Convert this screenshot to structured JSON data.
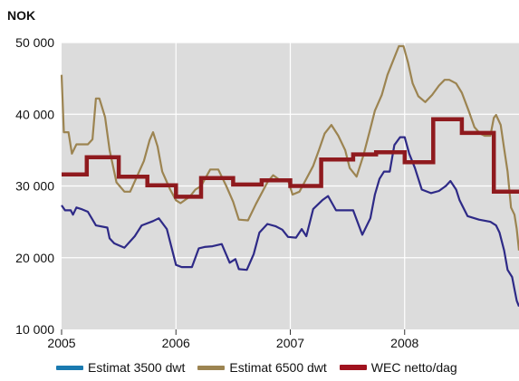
{
  "chart_data": {
    "type": "line",
    "title": "",
    "ylabel": "NOK",
    "xlabel": "",
    "xlim": [
      2005,
      2009
    ],
    "ylim": [
      10000,
      50000
    ],
    "x_tick_values": [
      2005,
      2006,
      2007,
      2008
    ],
    "x_tick_labels": [
      "2005",
      "2006",
      "2007",
      "2008"
    ],
    "y_tick_values": [
      10000,
      20000,
      30000,
      40000,
      50000
    ],
    "y_tick_labels": [
      "10 000",
      "20 000",
      "30 000",
      "40 000",
      "50 000"
    ],
    "grid": true,
    "legend_position": "bottom",
    "background": "#dcdcdc",
    "series": [
      {
        "name": "Estimat 3500 dwt",
        "color": "#2e2a87",
        "legend_color": "#1a7ab0",
        "style": "line",
        "points": [
          [
            2005.0,
            27300
          ],
          [
            2005.03,
            26600
          ],
          [
            2005.08,
            26600
          ],
          [
            2005.1,
            26000
          ],
          [
            2005.13,
            27000
          ],
          [
            2005.17,
            26800
          ],
          [
            2005.23,
            26400
          ],
          [
            2005.3,
            24500
          ],
          [
            2005.4,
            24200
          ],
          [
            2005.42,
            22700
          ],
          [
            2005.46,
            22000
          ],
          [
            2005.55,
            21400
          ],
          [
            2005.64,
            23000
          ],
          [
            2005.7,
            24500
          ],
          [
            2005.8,
            25100
          ],
          [
            2005.85,
            25500
          ],
          [
            2005.92,
            24000
          ],
          [
            2006.0,
            19000
          ],
          [
            2006.05,
            18700
          ],
          [
            2006.14,
            18700
          ],
          [
            2006.2,
            21300
          ],
          [
            2006.25,
            21500
          ],
          [
            2006.32,
            21600
          ],
          [
            2006.4,
            21900
          ],
          [
            2006.47,
            19300
          ],
          [
            2006.52,
            19800
          ],
          [
            2006.55,
            18400
          ],
          [
            2006.62,
            18300
          ],
          [
            2006.68,
            20500
          ],
          [
            2006.73,
            23500
          ],
          [
            2006.8,
            24700
          ],
          [
            2006.87,
            24400
          ],
          [
            2006.93,
            23900
          ],
          [
            2006.98,
            22900
          ],
          [
            2007.05,
            22800
          ],
          [
            2007.1,
            24000
          ],
          [
            2007.14,
            23000
          ],
          [
            2007.2,
            26800
          ],
          [
            2007.28,
            28000
          ],
          [
            2007.33,
            28600
          ],
          [
            2007.4,
            26600
          ],
          [
            2007.55,
            26600
          ],
          [
            2007.63,
            23200
          ],
          [
            2007.7,
            25500
          ],
          [
            2007.74,
            28800
          ],
          [
            2007.78,
            31000
          ],
          [
            2007.82,
            32000
          ],
          [
            2007.87,
            32000
          ],
          [
            2007.91,
            35700
          ],
          [
            2007.96,
            36800
          ],
          [
            2008.0,
            36800
          ],
          [
            2008.04,
            34500
          ],
          [
            2008.09,
            32500
          ],
          [
            2008.15,
            29500
          ],
          [
            2008.23,
            29000
          ],
          [
            2008.3,
            29300
          ],
          [
            2008.36,
            30000
          ],
          [
            2008.4,
            30700
          ],
          [
            2008.45,
            29500
          ],
          [
            2008.48,
            28000
          ],
          [
            2008.55,
            25800
          ],
          [
            2008.65,
            25300
          ],
          [
            2008.75,
            25000
          ],
          [
            2008.8,
            24500
          ],
          [
            2008.83,
            23500
          ],
          [
            2008.87,
            21000
          ],
          [
            2008.9,
            18300
          ],
          [
            2008.94,
            17300
          ],
          [
            2008.96,
            15600
          ],
          [
            2008.98,
            14000
          ],
          [
            2009.0,
            13200
          ]
        ]
      },
      {
        "name": "Estimat 6500 dwt",
        "color": "#9c8451",
        "legend_color": "#9c8451",
        "style": "line",
        "points": [
          [
            2005.0,
            45500
          ],
          [
            2005.02,
            37500
          ],
          [
            2005.06,
            37500
          ],
          [
            2005.09,
            34500
          ],
          [
            2005.13,
            35800
          ],
          [
            2005.23,
            35800
          ],
          [
            2005.27,
            36500
          ],
          [
            2005.3,
            42200
          ],
          [
            2005.33,
            42200
          ],
          [
            2005.38,
            39600
          ],
          [
            2005.42,
            35000
          ],
          [
            2005.48,
            30500
          ],
          [
            2005.55,
            29200
          ],
          [
            2005.6,
            29200
          ],
          [
            2005.65,
            31000
          ],
          [
            2005.72,
            33500
          ],
          [
            2005.77,
            36400
          ],
          [
            2005.8,
            37500
          ],
          [
            2005.84,
            35500
          ],
          [
            2005.88,
            32000
          ],
          [
            2005.95,
            29500
          ],
          [
            2006.0,
            28000
          ],
          [
            2006.04,
            27600
          ],
          [
            2006.12,
            28500
          ],
          [
            2006.17,
            29500
          ],
          [
            2006.22,
            30000
          ],
          [
            2006.3,
            32300
          ],
          [
            2006.37,
            32300
          ],
          [
            2006.44,
            30000
          ],
          [
            2006.5,
            27800
          ],
          [
            2006.55,
            25300
          ],
          [
            2006.63,
            25200
          ],
          [
            2006.7,
            27500
          ],
          [
            2006.8,
            30500
          ],
          [
            2006.85,
            31500
          ],
          [
            2006.92,
            30700
          ],
          [
            2006.98,
            30800
          ],
          [
            2007.02,
            28800
          ],
          [
            2007.08,
            29200
          ],
          [
            2007.14,
            31000
          ],
          [
            2007.2,
            32800
          ],
          [
            2007.25,
            35000
          ],
          [
            2007.3,
            37300
          ],
          [
            2007.36,
            38500
          ],
          [
            2007.42,
            37000
          ],
          [
            2007.48,
            35000
          ],
          [
            2007.52,
            32500
          ],
          [
            2007.58,
            31300
          ],
          [
            2007.64,
            34300
          ],
          [
            2007.7,
            38000
          ],
          [
            2007.74,
            40500
          ],
          [
            2007.8,
            42700
          ],
          [
            2007.85,
            45500
          ],
          [
            2007.9,
            47500
          ],
          [
            2007.95,
            49500
          ],
          [
            2007.99,
            49500
          ],
          [
            2008.03,
            47200
          ],
          [
            2008.07,
            44300
          ],
          [
            2008.12,
            42500
          ],
          [
            2008.18,
            41700
          ],
          [
            2008.24,
            42700
          ],
          [
            2008.3,
            44000
          ],
          [
            2008.35,
            44800
          ],
          [
            2008.39,
            44800
          ],
          [
            2008.45,
            44300
          ],
          [
            2008.5,
            43000
          ],
          [
            2008.56,
            40500
          ],
          [
            2008.61,
            38200
          ],
          [
            2008.66,
            37300
          ],
          [
            2008.7,
            37000
          ],
          [
            2008.75,
            37000
          ],
          [
            2008.78,
            39500
          ],
          [
            2008.8,
            39900
          ],
          [
            2008.84,
            38500
          ],
          [
            2008.87,
            35200
          ],
          [
            2008.9,
            32000
          ],
          [
            2008.93,
            27000
          ],
          [
            2008.96,
            26000
          ],
          [
            2008.98,
            24000
          ],
          [
            2009.0,
            21000
          ]
        ]
      },
      {
        "name": "WEC netto/dag",
        "color": "#8f1a1e",
        "legend_color": "#a0121e",
        "style": "step",
        "points": [
          [
            2005.0,
            31600
          ],
          [
            2005.22,
            31600
          ],
          [
            2005.22,
            34000
          ],
          [
            2005.5,
            34000
          ],
          [
            2005.5,
            31300
          ],
          [
            2005.75,
            31300
          ],
          [
            2005.75,
            30100
          ],
          [
            2006.0,
            30100
          ],
          [
            2006.0,
            28500
          ],
          [
            2006.22,
            28500
          ],
          [
            2006.22,
            31100
          ],
          [
            2006.5,
            31100
          ],
          [
            2006.5,
            30200
          ],
          [
            2006.75,
            30200
          ],
          [
            2006.75,
            30800
          ],
          [
            2007.0,
            30800
          ],
          [
            2007.0,
            30000
          ],
          [
            2007.27,
            30000
          ],
          [
            2007.27,
            33700
          ],
          [
            2007.55,
            33700
          ],
          [
            2007.55,
            34400
          ],
          [
            2007.75,
            34400
          ],
          [
            2007.75,
            34700
          ],
          [
            2008.0,
            34700
          ],
          [
            2008.0,
            33300
          ],
          [
            2008.25,
            33300
          ],
          [
            2008.25,
            39300
          ],
          [
            2008.5,
            39300
          ],
          [
            2008.5,
            37400
          ],
          [
            2008.78,
            37400
          ],
          [
            2008.78,
            29200
          ],
          [
            2009.0,
            29200
          ]
        ]
      }
    ]
  }
}
